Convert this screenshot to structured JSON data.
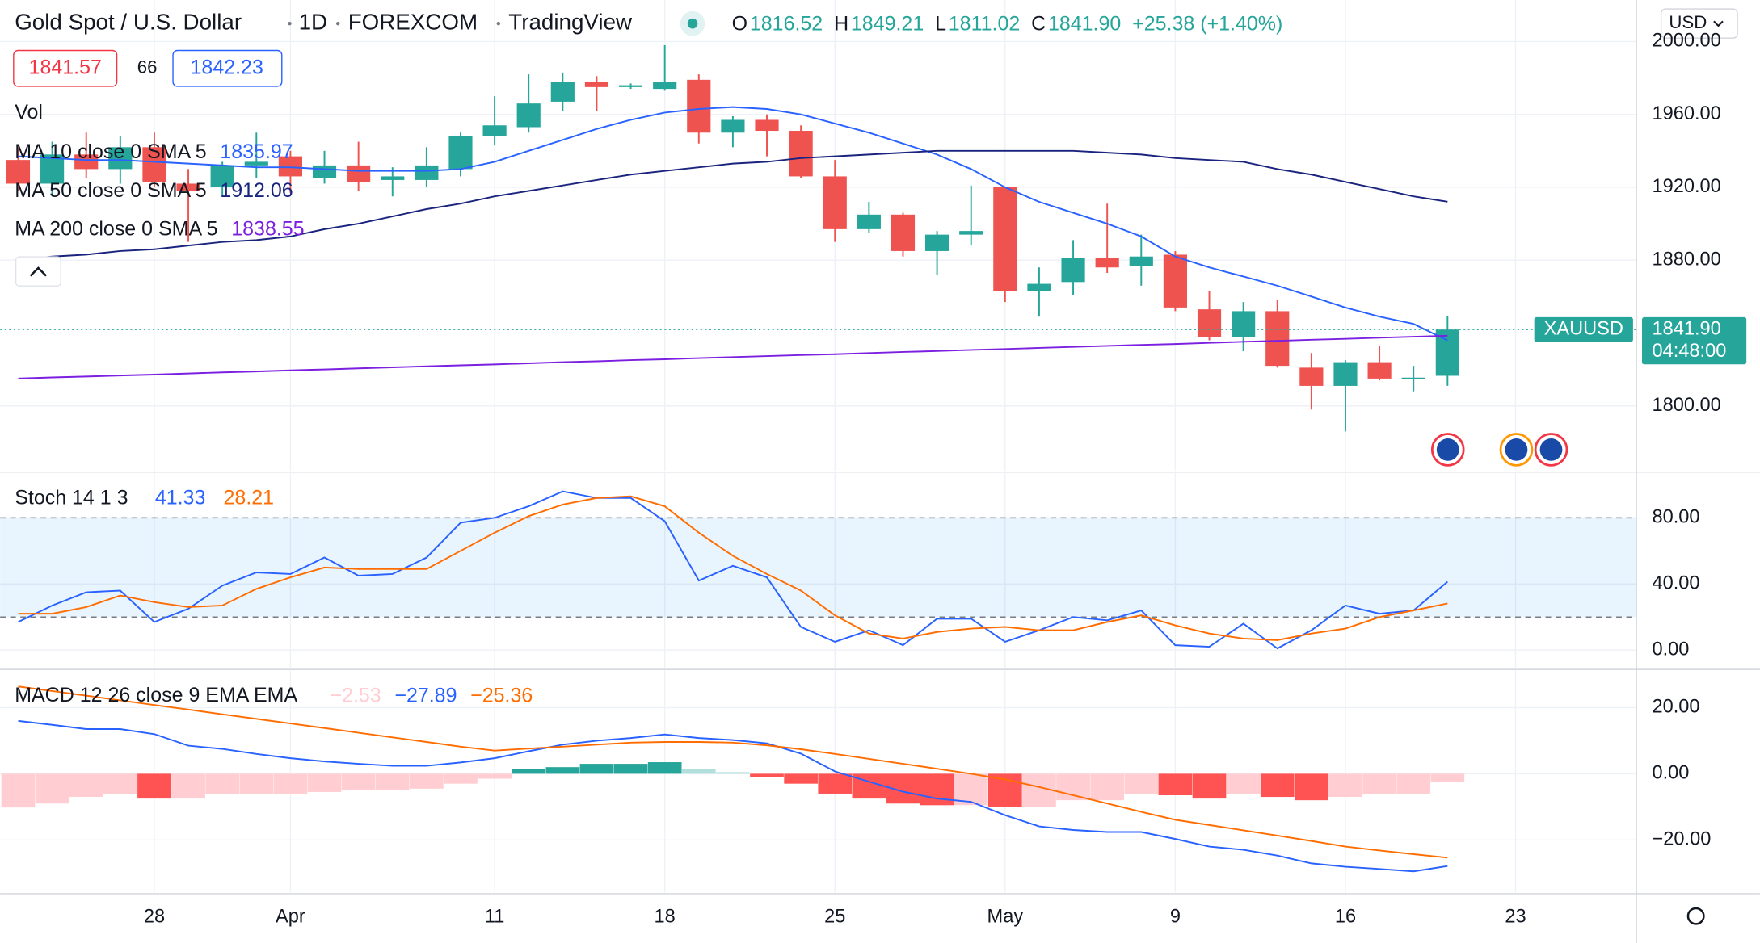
{
  "chart_data": [
    {
      "type": "candlestick",
      "title": "Gold Spot / U.S. Dollar",
      "interval": "1D",
      "exchange": "FOREXCOM",
      "source": "TradingView",
      "quote": [
        {
          "label": "O",
          "value": "1816.52"
        },
        {
          "label": "H",
          "value": "1849.21"
        },
        {
          "label": "L",
          "value": "1811.02"
        },
        {
          "label": "C",
          "value": "1841.90"
        }
      ],
      "change": "+25.38 (+1.40%)",
      "bid": "1841.57",
      "spread": "66",
      "ask": "1842.23",
      "volume_label": "Vol",
      "currency": "USD",
      "last_price": {
        "symbol": "XAUUSD",
        "label": "1841.90",
        "countdown": "04:48:00"
      },
      "up_color": "#26a69a",
      "down_color": "#ef5350",
      "open": [
        1935,
        1922,
        1938,
        1930,
        1942,
        1922,
        1920,
        1932,
        1937,
        1925,
        1932,
        1924,
        1924,
        1930,
        1948,
        1953,
        1967,
        1978,
        1975,
        1974,
        1979,
        1950,
        1957,
        1951,
        1926,
        1897,
        1905,
        1885,
        1894,
        1920,
        1863,
        1868,
        1881,
        1877,
        1883,
        1853,
        1838,
        1852,
        1821,
        1811,
        1824,
        1815,
        1816.52
      ],
      "high": [
        1942,
        1945,
        1950,
        1948,
        1950,
        1930,
        1934,
        1950,
        1940,
        1940,
        1945,
        1931,
        1942,
        1950,
        1970,
        1982,
        1983,
        1981,
        1977,
        1998,
        1982,
        1959,
        1960,
        1954,
        1935,
        1912,
        1906,
        1896,
        1921,
        1920,
        1876,
        1891,
        1911,
        1894,
        1885,
        1863,
        1857,
        1858,
        1829,
        1825,
        1833,
        1822,
        1849.21
      ],
      "low": [
        1918,
        1915,
        1925,
        1922,
        1920,
        1890,
        1915,
        1925,
        1917,
        1922,
        1918,
        1915,
        1920,
        1926,
        1943,
        1950,
        1962,
        1962,
        1974,
        1973,
        1944,
        1942,
        1937,
        1925,
        1890,
        1895,
        1882,
        1872,
        1888,
        1857,
        1849,
        1861,
        1873,
        1866,
        1852,
        1836,
        1830,
        1821,
        1798,
        1786,
        1814,
        1808,
        1811.02
      ],
      "close": [
        1922,
        1938,
        1930,
        1942,
        1923,
        1918,
        1932,
        1934,
        1926,
        1932,
        1923,
        1926,
        1932,
        1948,
        1954,
        1966,
        1978,
        1975,
        1976,
        1978,
        1950,
        1957,
        1951,
        1926,
        1897,
        1905,
        1885,
        1894,
        1896,
        1863,
        1867,
        1881,
        1876,
        1882,
        1854,
        1838,
        1852,
        1822,
        1811,
        1824,
        1815,
        1815.5,
        1841.9
      ],
      "series": [
        {
          "name": "MA 10 close 0 SMA 5",
          "color": "#2962ff",
          "value_label": "1835.97",
          "values": [
            1937,
            1936,
            1935,
            1935,
            1934,
            1933,
            1932,
            1931,
            1931,
            1930,
            1929,
            1929,
            1929,
            1930,
            1934,
            1940,
            1946,
            1952,
            1957,
            1961,
            1963,
            1964,
            1963,
            1960,
            1955,
            1950,
            1944,
            1938,
            1930,
            1920,
            1912,
            1906,
            1900,
            1893,
            1882,
            1876,
            1871,
            1866,
            1860,
            1854,
            1849,
            1845,
            1835.97
          ]
        },
        {
          "name": "MA 50 close 0 SMA 5",
          "color": "#1a237e",
          "value_label": "1912.06",
          "values": [
            1880,
            1882,
            1883,
            1885,
            1886,
            1888,
            1890,
            1891,
            1893,
            1897,
            1900,
            1904,
            1908,
            1911,
            1915,
            1918,
            1921,
            1924,
            1927,
            1929,
            1931,
            1933,
            1934,
            1936,
            1937,
            1938,
            1939,
            1940,
            1940,
            1940,
            1940,
            1940,
            1939,
            1938,
            1936,
            1935,
            1934,
            1930,
            1927,
            1923,
            1919,
            1915,
            1912.06
          ]
        },
        {
          "name": "MA 200 close 0 SMA 5",
          "color": "#7b1fe0",
          "value_label": "1838.55",
          "values": [
            1815,
            1815.6,
            1816.1,
            1816.7,
            1817.2,
            1817.8,
            1818.4,
            1818.9,
            1819.5,
            1820,
            1820.6,
            1821.2,
            1821.7,
            1822.3,
            1822.8,
            1823.4,
            1824,
            1824.5,
            1825.1,
            1825.6,
            1826.2,
            1826.8,
            1827.3,
            1827.9,
            1828.4,
            1829,
            1829.6,
            1830.1,
            1830.7,
            1831.2,
            1831.8,
            1832.4,
            1832.9,
            1833.5,
            1834,
            1834.6,
            1835.2,
            1835.7,
            1836.3,
            1836.8,
            1837.4,
            1838,
            1838.55
          ]
        }
      ],
      "ylim": [
        1764.3,
        2022.8
      ],
      "yticks": [
        {
          "value": 1800,
          "label": "1800.00"
        },
        {
          "value": 1880,
          "label": "1880.00"
        },
        {
          "value": 1920,
          "label": "1920.00"
        },
        {
          "value": 1960,
          "label": "1960.00"
        },
        {
          "value": 2000,
          "label": "2000.00"
        }
      ],
      "grid": true
    },
    {
      "type": "line",
      "title": "Stoch 14 1 3",
      "band": [
        20,
        80
      ],
      "band_color": "#2196f3",
      "series": [
        {
          "color": "#2962ff",
          "value_label": "41.33",
          "values": [
            17,
            27,
            35,
            36,
            17,
            25,
            39,
            47,
            46,
            56,
            45,
            46,
            56,
            77,
            80,
            87,
            96,
            92,
            92,
            78,
            42,
            51,
            44,
            14,
            5,
            12,
            3,
            19,
            19,
            5,
            12,
            20,
            18,
            24,
            3,
            2,
            16,
            1,
            12,
            27,
            22,
            24,
            41.33
          ]
        },
        {
          "color": "#ff6d00",
          "value_label": "28.21",
          "values": [
            22,
            22,
            26,
            33,
            29,
            26,
            27,
            37,
            44,
            50,
            49,
            49,
            49,
            60,
            71,
            81,
            88,
            92,
            93,
            87,
            71,
            57,
            46,
            36,
            21,
            10,
            7,
            11,
            13,
            14,
            12,
            12,
            17,
            21,
            15,
            10,
            7,
            6,
            10,
            13,
            20,
            24,
            28.21
          ]
        }
      ],
      "ylim": [
        -11,
        107
      ],
      "yticks": [
        {
          "value": 0,
          "label": "0.00"
        },
        {
          "value": 40,
          "label": "40.00"
        },
        {
          "value": 80,
          "label": "80.00"
        }
      ],
      "grid": true
    },
    {
      "type": "macd",
      "title": "MACD 12 26 close 9 EMA EMA",
      "histogram": {
        "value_label": "−2.53",
        "label_color": "#ffcdd2",
        "colors": {
          "rise_pos": "#26a69a",
          "fall_pos": "#b2dfdb",
          "rise_neg": "#ffcdd2",
          "fall_neg": "#ff5252"
        },
        "values": [
          -10.2,
          -9,
          -7,
          -6,
          -7.5,
          -7.5,
          -6,
          -6,
          -6,
          -5.5,
          -5,
          -5,
          -4.5,
          -3,
          -1.5,
          1.5,
          2,
          3,
          3,
          3.5,
          1.5,
          0.5,
          -1,
          -3,
          -6,
          -7.5,
          -9,
          -9.5,
          -9.5,
          -10,
          -10,
          -8,
          -8,
          -6,
          -6.5,
          -7.5,
          -6,
          -7,
          -8,
          -7,
          -6,
          -6,
          -2.53
        ]
      },
      "series": [
        {
          "color": "#2962ff",
          "value_label": "−27.89",
          "values": [
            16,
            14.8,
            13.5,
            13.5,
            12,
            8.5,
            7.5,
            6,
            4.7,
            3.7,
            3,
            2.4,
            2.4,
            3.4,
            4.7,
            6.8,
            8.8,
            10,
            10.8,
            11.9,
            10.8,
            10.2,
            9.2,
            6.1,
            0.7,
            -2.4,
            -5.4,
            -7.5,
            -8.5,
            -12.5,
            -15.9,
            -17,
            -17.6,
            -17.6,
            -19.7,
            -22,
            -23,
            -24.7,
            -27.1,
            -28.1,
            -28.8,
            -29.5,
            -27.89
          ]
        },
        {
          "color": "#ff6d00",
          "value_label": "−25.36",
          "values": [
            26.4,
            25,
            23.6,
            22.2,
            20.8,
            19.4,
            18,
            16.6,
            15.2,
            13.8,
            12.4,
            11,
            9.6,
            8.2,
            7,
            7.6,
            8.2,
            8.8,
            9.4,
            9.6,
            9.6,
            9.4,
            8.6,
            7.4,
            6,
            4.5,
            3,
            1.5,
            0,
            -1.7,
            -4,
            -6.5,
            -9,
            -11.5,
            -13.9,
            -15.5,
            -17.1,
            -18.7,
            -20.3,
            -22,
            -23.2,
            -24.3,
            -25.36
          ]
        }
      ],
      "ylim": [
        -35.9,
        31.2
      ],
      "yticks": [
        {
          "value": -20,
          "label": "−20.00"
        },
        {
          "value": 0,
          "label": "0.00"
        },
        {
          "value": 20,
          "label": "20.00"
        }
      ],
      "xlim": [
        -0.53,
        47.55
      ],
      "xticks": [
        {
          "value": 4,
          "label": "28"
        },
        {
          "value": 8,
          "label": "Apr"
        },
        {
          "value": 14,
          "label": "11"
        },
        {
          "value": 19,
          "label": "18"
        },
        {
          "value": 24,
          "label": "25"
        },
        {
          "value": 29,
          "label": "May"
        },
        {
          "value": 34,
          "label": "9"
        },
        {
          "value": 39,
          "label": "16"
        },
        {
          "value": 44,
          "label": "23"
        }
      ],
      "grid": true
    }
  ]
}
